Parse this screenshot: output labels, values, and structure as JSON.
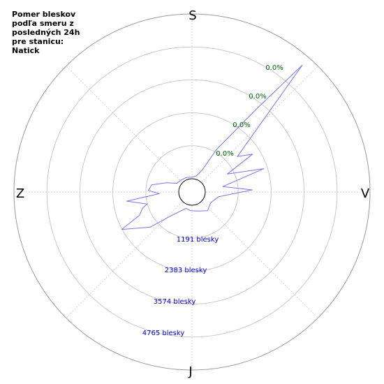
{
  "chart_data": {
    "type": "polar-area",
    "title": "Pomer bleskov\npodľa smeru z\nposledných 24h\npre stanicu:\nNatick",
    "directions": {
      "top": "S",
      "right": "V",
      "bottom": "J",
      "left": "Z"
    },
    "percent_labels": [
      "0.0%",
      "0.0%",
      "0.0%",
      "0.0%"
    ],
    "count_labels": [
      "1191 blesky",
      "2383 blesky",
      "3574 blesky",
      "4765 blesky"
    ],
    "rings": [
      1191,
      2383,
      3574,
      4765
    ],
    "r_max": 5956,
    "series": [
      {
        "color": "#7777ee",
        "points": [
          {
            "angle": 0,
            "value": 60
          },
          {
            "angle": 15,
            "value": 120
          },
          {
            "angle": 25,
            "value": 400
          },
          {
            "angle": 30,
            "value": 1300
          },
          {
            "angle": 38,
            "value": 3400
          },
          {
            "angle": 41,
            "value": 5600
          },
          {
            "angle": 52,
            "value": 1600
          },
          {
            "angle": 58,
            "value": 2100
          },
          {
            "angle": 63,
            "value": 950
          },
          {
            "angle": 72,
            "value": 2250
          },
          {
            "angle": 80,
            "value": 650
          },
          {
            "angle": 88,
            "value": 1700
          },
          {
            "angle": 100,
            "value": 500
          },
          {
            "angle": 120,
            "value": 300
          },
          {
            "angle": 140,
            "value": 400
          },
          {
            "angle": 160,
            "value": 250
          },
          {
            "angle": 185,
            "value": 200
          },
          {
            "angle": 200,
            "value": 150
          },
          {
            "angle": 222,
            "value": 700
          },
          {
            "angle": 230,
            "value": 1500
          },
          {
            "angle": 242,
            "value": 2400
          },
          {
            "angle": 246,
            "value": 1600
          },
          {
            "angle": 252,
            "value": 1400
          },
          {
            "angle": 255,
            "value": 1200
          },
          {
            "angle": 262,
            "value": 1900
          },
          {
            "angle": 267,
            "value": 700
          },
          {
            "angle": 272,
            "value": 1100
          },
          {
            "angle": 280,
            "value": 1000
          },
          {
            "angle": 290,
            "value": 500
          },
          {
            "angle": 300,
            "value": 150
          },
          {
            "angle": 320,
            "value": 100
          },
          {
            "angle": 340,
            "value": 80
          },
          {
            "angle": 360,
            "value": 60
          }
        ]
      }
    ]
  }
}
